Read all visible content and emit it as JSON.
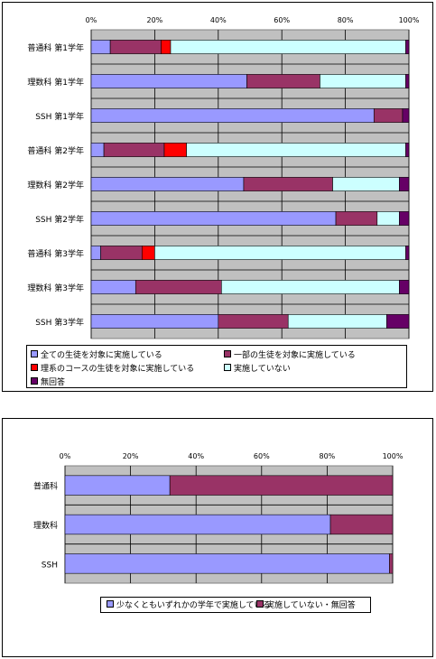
{
  "colors": {
    "s1": "#9999ff",
    "s2": "#993366",
    "s3": "#ff0000",
    "s4": "#ccffff",
    "s5": "#660066",
    "plot_bg": "#c0c0c0"
  },
  "chart_data": [
    {
      "type": "bar",
      "orientation": "horizontal",
      "stacked": "percent",
      "categories": [
        "普通科 第1学年",
        "理数科 第1学年",
        "SSH 第1学年",
        "普通科 第2学年",
        "理数科 第2学年",
        "SSH 第2学年",
        "普通科 第3学年",
        "理数科 第3学年",
        "SSH 第3学年"
      ],
      "x_ticks": [
        "0%",
        "20%",
        "40%",
        "60%",
        "80%",
        "100%"
      ],
      "xlim": [
        0,
        100
      ],
      "legend_position": "bottom",
      "grid": true,
      "series": [
        {
          "name": "全ての生徒を対象に実施している",
          "color_key": "s1",
          "values": [
            6,
            49,
            89,
            4,
            48,
            77,
            3,
            14,
            40
          ]
        },
        {
          "name": "一部の生徒を対象に実施している",
          "color_key": "s2",
          "values": [
            16,
            23,
            9,
            19,
            28,
            13,
            13,
            27,
            22
          ]
        },
        {
          "name": "理系のコースの生徒を対象に実施している",
          "color_key": "s3",
          "values": [
            3,
            0,
            0,
            7,
            0,
            0,
            4,
            0,
            0
          ]
        },
        {
          "name": "実施していない",
          "color_key": "s4",
          "values": [
            74,
            27,
            0,
            69,
            21,
            7,
            79,
            56,
            31
          ]
        },
        {
          "name": "無回答",
          "color_key": "s5",
          "values": [
            1,
            1,
            2,
            1,
            3,
            3,
            1,
            3,
            7
          ]
        }
      ]
    },
    {
      "type": "bar",
      "orientation": "horizontal",
      "stacked": "percent",
      "categories": [
        "普通科",
        "理数科",
        "SSH"
      ],
      "x_ticks": [
        "0%",
        "20%",
        "40%",
        "60%",
        "80%",
        "100%"
      ],
      "xlim": [
        0,
        100
      ],
      "legend_position": "bottom",
      "grid": true,
      "series": [
        {
          "name": "少なくともいずれかの学年で実施している",
          "color_key": "s1",
          "values": [
            32,
            81,
            99
          ]
        },
        {
          "name": "実施していない・無回答",
          "color_key": "s2",
          "values": [
            68,
            19,
            1
          ]
        }
      ]
    }
  ]
}
